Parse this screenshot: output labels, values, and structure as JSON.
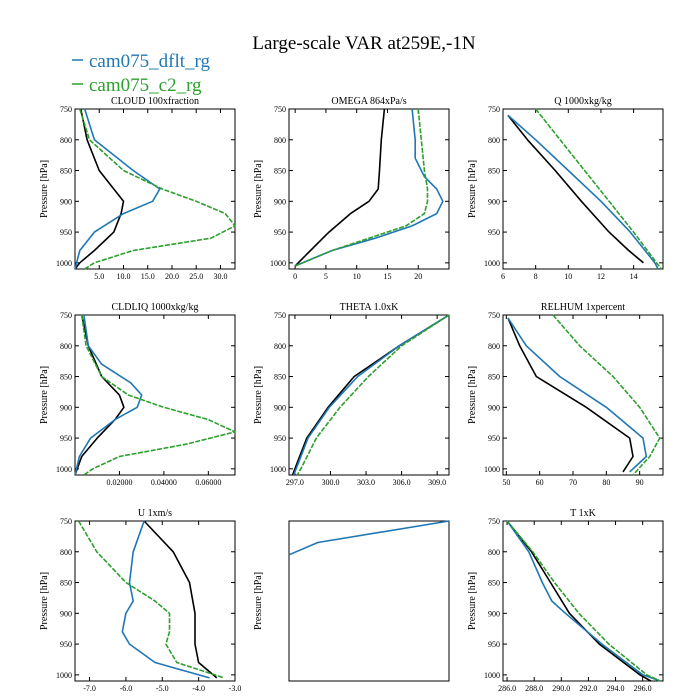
{
  "title": "Large-scale VAR at259E,-1N",
  "legend": [
    {
      "label": "cam075_dflt_rg",
      "color": "#1f77b4"
    },
    {
      "label": "cam075_c2_rg",
      "color": "#2ca02c"
    }
  ],
  "colors": {
    "black_series": "#000000",
    "dflt": "#1f77b4",
    "c2": "#2ca02c"
  },
  "chart_data": [
    {
      "type": "line",
      "title": "CLOUD  100xfraction",
      "ylabel": "Pressure [hPa]",
      "xlim": [
        0,
        33
      ],
      "ylim": [
        1010,
        750
      ],
      "xticks": [
        5,
        10,
        15,
        20,
        25,
        30
      ],
      "xticklabels": [
        "5.0",
        "10.0",
        "15.0",
        "20.0",
        "25.0",
        "30.0"
      ],
      "yticks": [
        750,
        800,
        850,
        900,
        950,
        1000
      ],
      "yticklabels": [
        "750",
        "800",
        "850",
        "900",
        "950",
        "1000"
      ],
      "series": [
        {
          "color": "#000000",
          "dash": false,
          "y": [
            750,
            800,
            850,
            880,
            900,
            920,
            950,
            980,
            1000,
            1010
          ],
          "x": [
            1.2,
            2.5,
            5,
            8,
            10,
            9.5,
            8,
            4,
            1,
            0
          ]
        },
        {
          "color": "#1f77b4",
          "dash": false,
          "y": [
            750,
            800,
            850,
            880,
            900,
            920,
            950,
            980,
            1010
          ],
          "x": [
            2,
            4,
            12,
            17.5,
            16,
            10,
            4,
            1,
            0
          ]
        },
        {
          "color": "#2ca02c",
          "dash": true,
          "y": [
            750,
            800,
            850,
            880,
            900,
            920,
            940,
            960,
            980,
            1000,
            1010
          ],
          "x": [
            1,
            3,
            10,
            18,
            25,
            31,
            33,
            28,
            12,
            4,
            2
          ]
        }
      ]
    },
    {
      "type": "line",
      "title": "OMEGA  864xPa/s",
      "ylabel": "Pressure [hPa]",
      "xlim": [
        -1,
        25
      ],
      "ylim": [
        1010,
        750
      ],
      "xticks": [
        0,
        5,
        10,
        15,
        20
      ],
      "xticklabels": [
        "0",
        "5",
        "10",
        "15",
        "20"
      ],
      "yticks": [
        750,
        800,
        850,
        900,
        950,
        1000
      ],
      "yticklabels": [
        "750",
        "800",
        "850",
        "900",
        "950",
        "1000"
      ],
      "series": [
        {
          "color": "#000000",
          "dash": false,
          "y": [
            750,
            800,
            850,
            880,
            900,
            920,
            950,
            980,
            1005
          ],
          "x": [
            14.5,
            14,
            13.7,
            13.5,
            12,
            9,
            5.5,
            2.5,
            0
          ]
        },
        {
          "color": "#1f77b4",
          "dash": false,
          "y": [
            750,
            800,
            830,
            860,
            880,
            900,
            920,
            940,
            960,
            980,
            1005
          ],
          "x": [
            19,
            19.5,
            19.5,
            21,
            23,
            24,
            23,
            19,
            13,
            6,
            0
          ]
        },
        {
          "color": "#2ca02c",
          "dash": true,
          "y": [
            750,
            800,
            850,
            880,
            900,
            920,
            940,
            960,
            980,
            1005
          ],
          "x": [
            20,
            20.5,
            21,
            21.5,
            21.5,
            21,
            18,
            12,
            6,
            0
          ]
        }
      ]
    },
    {
      "type": "line",
      "title": "Q  1000xkg/kg",
      "ylabel": "Pressure [hPa]",
      "xlim": [
        6,
        15.8
      ],
      "ylim": [
        1010,
        750
      ],
      "xticks": [
        6,
        8,
        10,
        12,
        14
      ],
      "xticklabels": [
        "6",
        "8",
        "10",
        "12",
        "14"
      ],
      "yticks": [
        750,
        800,
        850,
        900,
        950,
        1000
      ],
      "yticklabels": [
        "750",
        "800",
        "850",
        "900",
        "950",
        "1000"
      ],
      "series": [
        {
          "color": "#000000",
          "dash": false,
          "y": [
            760,
            800,
            850,
            900,
            950,
            980,
            1000
          ],
          "x": [
            6.3,
            7.5,
            9.2,
            10.8,
            12.5,
            13.7,
            14.6
          ]
        },
        {
          "color": "#1f77b4",
          "dash": false,
          "y": [
            760,
            800,
            850,
            900,
            950,
            1000,
            1010
          ],
          "x": [
            6.3,
            8,
            10,
            12,
            13.8,
            15.3,
            15.5
          ]
        },
        {
          "color": "#2ca02c",
          "dash": true,
          "y": [
            750,
            800,
            850,
            900,
            950,
            1000,
            1010
          ],
          "x": [
            8,
            9.5,
            11,
            12.5,
            14,
            15.4,
            15.7
          ]
        }
      ]
    },
    {
      "type": "line",
      "title": "CLDLIQ  1000xkg/kg",
      "ylabel": "Pressure [hPa]",
      "xlim": [
        0,
        0.072
      ],
      "ylim": [
        1010,
        750
      ],
      "xticks": [
        0.02,
        0.04,
        0.06
      ],
      "xticklabels": [
        "0.02000",
        "0.04000",
        "0.06000"
      ],
      "yticks": [
        750,
        800,
        850,
        900,
        950,
        1000
      ],
      "yticklabels": [
        "750",
        "800",
        "850",
        "900",
        "950",
        "1000"
      ],
      "series": [
        {
          "color": "#000000",
          "dash": false,
          "y": [
            750,
            800,
            850,
            880,
            900,
            920,
            950,
            980,
            1010
          ],
          "x": [
            0.003,
            0.006,
            0.012,
            0.02,
            0.022,
            0.018,
            0.01,
            0.003,
            0
          ]
        },
        {
          "color": "#1f77b4",
          "dash": false,
          "y": [
            750,
            800,
            830,
            860,
            880,
            900,
            920,
            950,
            980,
            1010
          ],
          "x": [
            0.004,
            0.006,
            0.012,
            0.025,
            0.03,
            0.028,
            0.018,
            0.007,
            0.002,
            0
          ]
        },
        {
          "color": "#2ca02c",
          "dash": true,
          "y": [
            750,
            800,
            850,
            880,
            900,
            920,
            940,
            960,
            980,
            1000,
            1010
          ],
          "x": [
            0.003,
            0.005,
            0.012,
            0.024,
            0.04,
            0.06,
            0.072,
            0.05,
            0.02,
            0.008,
            0.004
          ]
        }
      ]
    },
    {
      "type": "line",
      "title": "THETA  1.0xK",
      "ylabel": "Pressure [hPa]",
      "xlim": [
        296.5,
        310
      ],
      "ylim": [
        1010,
        750
      ],
      "xticks": [
        297,
        300,
        303,
        306,
        309
      ],
      "xticklabels": [
        "297.0",
        "300.0",
        "303.0",
        "306.0",
        "309.0"
      ],
      "yticks": [
        750,
        800,
        850,
        900,
        950,
        1000
      ],
      "yticklabels": [
        "750",
        "800",
        "850",
        "900",
        "950",
        "1000"
      ],
      "series": [
        {
          "color": "#000000",
          "dash": false,
          "y": [
            750,
            800,
            850,
            900,
            950,
            1000,
            1010
          ],
          "x": [
            310,
            305.8,
            302,
            299.8,
            298,
            297,
            296.8
          ]
        },
        {
          "color": "#1f77b4",
          "dash": false,
          "y": [
            750,
            800,
            850,
            900,
            950,
            1000,
            1010
          ],
          "x": [
            310,
            305.8,
            302.3,
            299.9,
            298.1,
            297.1,
            296.9
          ]
        },
        {
          "color": "#2ca02c",
          "dash": true,
          "y": [
            750,
            800,
            850,
            900,
            950,
            1000,
            1010
          ],
          "x": [
            310,
            306,
            303.2,
            300.8,
            298.8,
            297.5,
            297.2
          ]
        }
      ]
    },
    {
      "type": "line",
      "title": "RELHUM  1xpercent",
      "ylabel": "Pressure [hPa]",
      "xlim": [
        49,
        97
      ],
      "ylim": [
        1010,
        750
      ],
      "xticks": [
        50,
        60,
        70,
        80,
        90
      ],
      "xticklabels": [
        "50",
        "60",
        "70",
        "80",
        "90"
      ],
      "yticks": [
        750,
        800,
        850,
        900,
        950,
        1000
      ],
      "yticklabels": [
        "750",
        "800",
        "850",
        "900",
        "950",
        "1000"
      ],
      "series": [
        {
          "color": "#000000",
          "dash": false,
          "y": [
            755,
            800,
            850,
            900,
            950,
            980,
            1005
          ],
          "x": [
            50.5,
            54,
            59,
            74,
            87,
            88,
            85
          ]
        },
        {
          "color": "#1f77b4",
          "dash": false,
          "y": [
            755,
            800,
            850,
            900,
            950,
            980,
            1005
          ],
          "x": [
            50.5,
            56,
            66,
            80,
            91,
            92,
            87
          ]
        },
        {
          "color": "#2ca02c",
          "dash": true,
          "y": [
            750,
            800,
            850,
            900,
            950,
            980,
            1010
          ],
          "x": [
            64,
            72,
            82,
            90,
            96,
            93,
            88
          ]
        }
      ]
    },
    {
      "type": "line",
      "title": "U  1xm/s",
      "ylabel": "Pressure [hPa]",
      "xlim": [
        -7.4,
        -3
      ],
      "ylim": [
        1010,
        750
      ],
      "xticks": [
        -7,
        -6,
        -5,
        -4,
        -3
      ],
      "xticklabels": [
        "-7.0",
        "-6.0",
        "-5.0",
        "-4.0",
        "-3.0"
      ],
      "yticks": [
        750,
        800,
        850,
        900,
        950,
        1000
      ],
      "yticklabels": [
        "750",
        "800",
        "850",
        "900",
        "950",
        "1000"
      ],
      "series": [
        {
          "color": "#000000",
          "dash": false,
          "y": [
            750,
            800,
            850,
            900,
            950,
            980,
            1005
          ],
          "x": [
            -5.5,
            -4.7,
            -4.25,
            -4.1,
            -4.1,
            -4,
            -3.5
          ]
        },
        {
          "color": "#1f77b4",
          "dash": false,
          "y": [
            750,
            800,
            850,
            880,
            900,
            930,
            950,
            980,
            1005
          ],
          "x": [
            -5.5,
            -5.8,
            -5.9,
            -5.8,
            -6.0,
            -6.1,
            -5.9,
            -5.2,
            -3.7
          ]
        },
        {
          "color": "#2ca02c",
          "dash": true,
          "y": [
            750,
            800,
            850,
            880,
            900,
            930,
            950,
            980,
            1005
          ],
          "x": [
            -7.3,
            -6.8,
            -6,
            -5.2,
            -4.8,
            -4.8,
            -4.9,
            -4.6,
            -3.3
          ]
        }
      ]
    },
    {
      "type": "line",
      "title": "",
      "ylabel": "Pressure [hPa]",
      "xlim": [
        0,
        1
      ],
      "ylim": [
        1010,
        750
      ],
      "xticks": [],
      "xticklabels": [],
      "yticks": [],
      "yticklabels": [],
      "series": [
        {
          "color": "#1f77b4",
          "dash": false,
          "y": [
            805,
            785,
            750
          ],
          "x": [
            0,
            0.18,
            1
          ]
        }
      ]
    },
    {
      "type": "line",
      "title": "T  1xK",
      "ylabel": "Pressure [hPa]",
      "xlim": [
        285.7,
        297.5
      ],
      "ylim": [
        1010,
        750
      ],
      "xticks": [
        286,
        288,
        290,
        292,
        294,
        296
      ],
      "xticklabels": [
        "286.0",
        "288.0",
        "290.0",
        "292.0",
        "294.0",
        "296.0"
      ],
      "yticks": [
        750,
        800,
        850,
        900,
        950,
        1000
      ],
      "yticklabels": [
        "750",
        "800",
        "850",
        "900",
        "950",
        "1000"
      ],
      "series": [
        {
          "color": "#000000",
          "dash": false,
          "y": [
            750,
            800,
            850,
            900,
            950,
            1000,
            1010
          ],
          "x": [
            286,
            287.8,
            289.2,
            290.6,
            292.8,
            295.8,
            296.6
          ]
        },
        {
          "color": "#1f77b4",
          "dash": false,
          "y": [
            750,
            800,
            850,
            880,
            900,
            950,
            1000,
            1010
          ],
          "x": [
            286,
            287.6,
            288.6,
            289.3,
            290.3,
            293,
            296,
            297.3
          ]
        },
        {
          "color": "#2ca02c",
          "dash": true,
          "y": [
            750,
            800,
            850,
            900,
            950,
            1000,
            1010
          ],
          "x": [
            286,
            287.9,
            289.5,
            291.3,
            293.5,
            296.3,
            297.3
          ]
        }
      ]
    }
  ]
}
